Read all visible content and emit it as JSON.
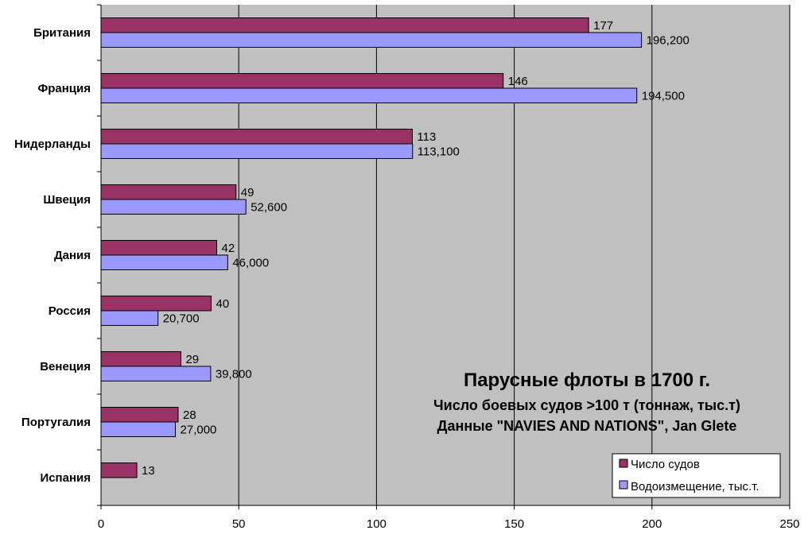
{
  "chart_data": {
    "type": "bar",
    "orientation": "horizontal",
    "title": "Парусные флоты в 1700 г.",
    "subtitle_lines": [
      "Число боевых судов >100 т (тоннаж, тыс.т)",
      "Данные \"NAVIES AND NATIONS\", Jan Glete"
    ],
    "categories": [
      "Британия",
      "Франция",
      "Нидерланды",
      "Швеция",
      "Дания",
      "Россия",
      "Венеция",
      "Португалия",
      "Испания"
    ],
    "series": [
      {
        "name": "Число судов",
        "color": "#993366",
        "values": [
          177,
          146,
          113,
          49,
          42,
          40,
          29,
          28,
          13
        ],
        "labels": [
          "177",
          "146",
          "113",
          "49",
          "42",
          "40",
          "29",
          "28",
          "13"
        ]
      },
      {
        "name": "Водоизмещение, тыс.т.",
        "color": "#9999ff",
        "values": [
          196.2,
          194.5,
          113.1,
          52.6,
          46.0,
          20.7,
          39.8,
          27.0,
          null
        ],
        "labels": [
          "196,200",
          "194,500",
          "113,100",
          "52,600",
          "46,000",
          "20,700",
          "39,800",
          "27,000",
          null
        ]
      }
    ],
    "xlim": [
      0,
      250
    ],
    "xticks": [
      0,
      50,
      100,
      150,
      200,
      250
    ],
    "xlabel": "",
    "ylabel": "",
    "grid": "vertical",
    "plot_background": "#c0c0c0",
    "legend_position": "bottom-right"
  }
}
